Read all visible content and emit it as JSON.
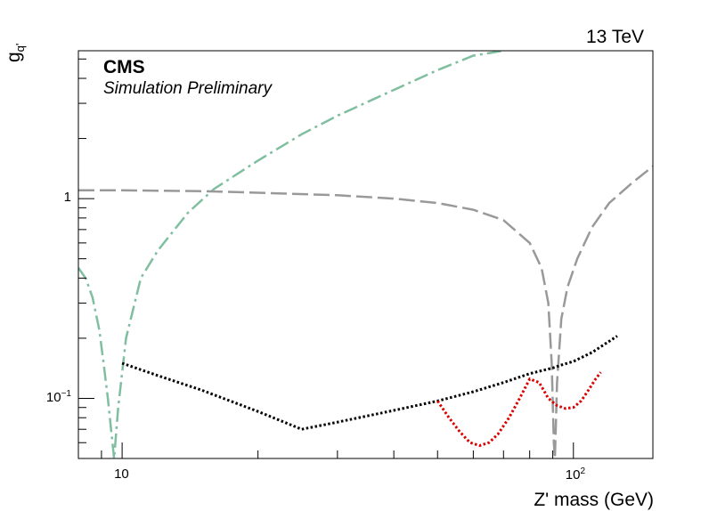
{
  "chart_data": {
    "type": "line",
    "energy_label": "13 TeV",
    "experiment": "CMS",
    "status": "Simulation Preliminary",
    "xlabel": "Z' mass (GeV)",
    "ylabel_base": "g",
    "ylabel_sub": "q'",
    "x_scale": "log",
    "y_scale": "log",
    "xlim": [
      8,
      150
    ],
    "ylim": [
      0.05,
      5.5
    ],
    "x_ticklabels": [
      {
        "value": 10,
        "label": "10"
      },
      {
        "value": 100,
        "label": "10",
        "exp": "2"
      }
    ],
    "y_ticklabels": [
      {
        "value": 0.1,
        "label": "10",
        "exp": "−1"
      },
      {
        "value": 1,
        "label": "1"
      }
    ],
    "grid": false,
    "series": [
      {
        "color": "#7fbf9f",
        "style": "dash-dot",
        "x": [
          8.0,
          8.3,
          8.6,
          8.9,
          9.1,
          9.3,
          9.45,
          9.6,
          9.8,
          10.2,
          11,
          12,
          14,
          16,
          20,
          25,
          30,
          40,
          50,
          60,
          70
        ],
        "y": [
          0.45,
          0.4,
          0.32,
          0.22,
          0.15,
          0.1,
          0.07,
          0.05,
          0.09,
          0.2,
          0.4,
          0.55,
          0.85,
          1.12,
          1.55,
          2.1,
          2.6,
          3.5,
          4.4,
          5.2,
          5.5
        ]
      },
      {
        "color": "#999999",
        "style": "dashed",
        "x": [
          8.0,
          10,
          15,
          20,
          30,
          40,
          50,
          60,
          70,
          80,
          85,
          88,
          89.5,
          90.5,
          91,
          92,
          94,
          97,
          102,
          110,
          120,
          135,
          150
        ],
        "y": [
          1.1,
          1.1,
          1.09,
          1.07,
          1.04,
          1.0,
          0.95,
          0.88,
          0.78,
          0.6,
          0.45,
          0.3,
          0.15,
          0.06,
          0.05,
          0.12,
          0.25,
          0.36,
          0.5,
          0.72,
          0.95,
          1.2,
          1.45
        ]
      },
      {
        "color": "#000000",
        "style": "dotted",
        "x": [
          10,
          12,
          15,
          20,
          25,
          30,
          40,
          50,
          60,
          70,
          80,
          90,
          95,
          100,
          110,
          125
        ],
        "y": [
          0.15,
          0.13,
          0.11,
          0.086,
          0.07,
          0.076,
          0.087,
          0.097,
          0.108,
          0.12,
          0.133,
          0.142,
          0.148,
          0.153,
          0.17,
          0.205
        ]
      },
      {
        "color": "#dd0000",
        "style": "dotted",
        "x": [
          50,
          53,
          56,
          59,
          62,
          65,
          68,
          72,
          76,
          80,
          84,
          88,
          92,
          96,
          100,
          104,
          108,
          112,
          115
        ],
        "y": [
          0.097,
          0.08,
          0.068,
          0.06,
          0.058,
          0.06,
          0.066,
          0.08,
          0.1,
          0.125,
          0.12,
          0.1,
          0.092,
          0.089,
          0.09,
          0.097,
          0.11,
          0.125,
          0.135
        ]
      }
    ]
  }
}
